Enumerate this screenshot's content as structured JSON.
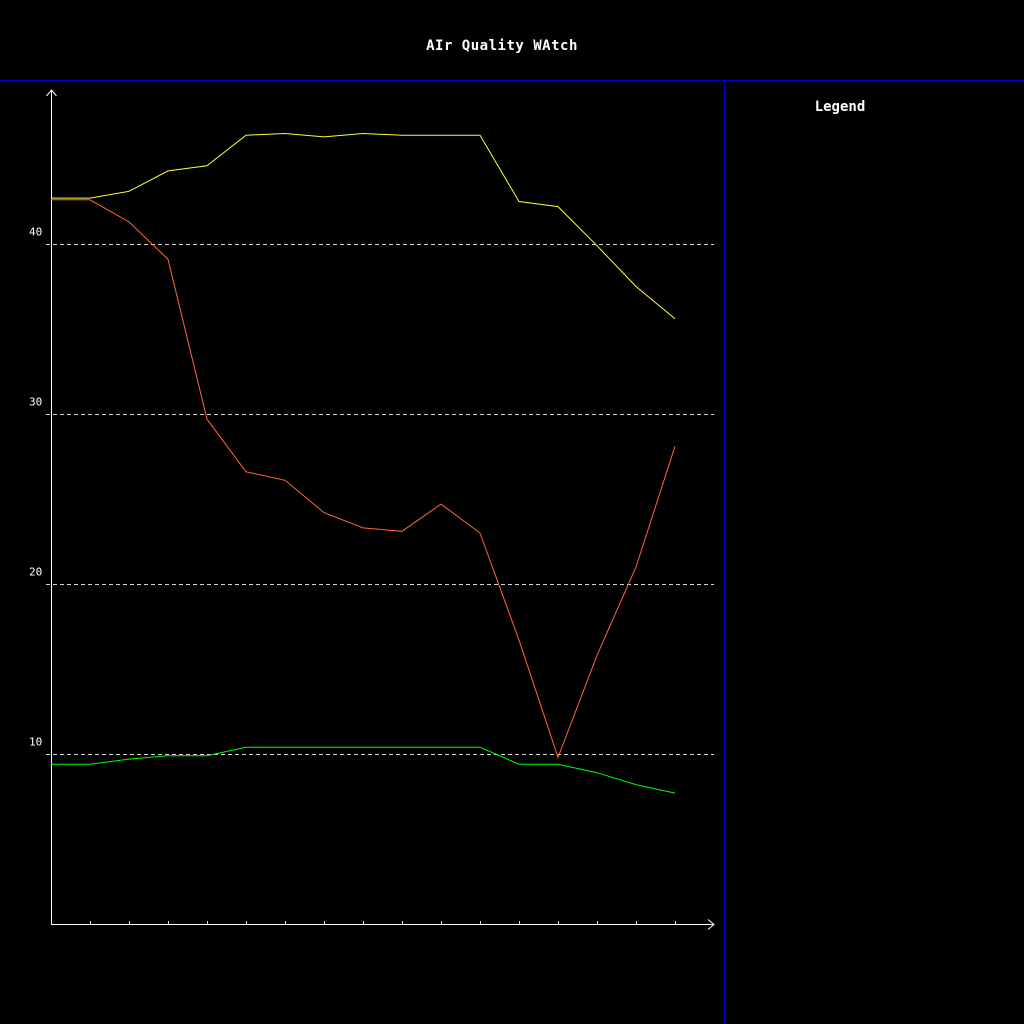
{
  "title": "AIr Quality WAtch",
  "legend": {
    "title": "Legend"
  },
  "colors": {
    "background": "#000000",
    "frame": "#0000cc",
    "axis": "#ffffff",
    "grid": "#ffffff"
  },
  "chart_data": {
    "type": "line",
    "title": "AIr Quality WAtch",
    "xlabel": "",
    "ylabel": "",
    "x": [
      0,
      1,
      2,
      3,
      4,
      5,
      6,
      7,
      8,
      9,
      10,
      11,
      12,
      13,
      14,
      15,
      16
    ],
    "xlim": [
      0,
      17
    ],
    "ylim": [
      0,
      49
    ],
    "yticks": [
      {
        "value": 10,
        "label": "10"
      },
      {
        "value": 20,
        "label": "20"
      },
      {
        "value": 30,
        "label": "30"
      },
      {
        "value": 40,
        "label": "40"
      }
    ],
    "grid": "horizontal dashed",
    "series": [
      {
        "color": "#ffff33",
        "values": [
          42.7,
          42.7,
          43.1,
          44.3,
          44.6,
          46.4,
          46.5,
          46.3,
          46.5,
          46.4,
          46.4,
          46.4,
          42.5,
          42.2,
          39.9,
          37.5,
          35.6
        ]
      },
      {
        "color": "#ff6633",
        "values": [
          42.6,
          42.6,
          41.3,
          39.1,
          29.7,
          26.6,
          26.1,
          24.2,
          23.3,
          23.1,
          24.7,
          23.0,
          16.7,
          9.8,
          15.8,
          21.0,
          28.1
        ]
      },
      {
        "color": "#00ff00",
        "values": [
          9.4,
          9.4,
          9.7,
          9.9,
          9.9,
          10.4,
          10.4,
          10.4,
          10.4,
          10.4,
          10.4,
          10.4,
          9.4,
          9.4,
          8.9,
          8.2,
          7.7
        ]
      }
    ]
  }
}
